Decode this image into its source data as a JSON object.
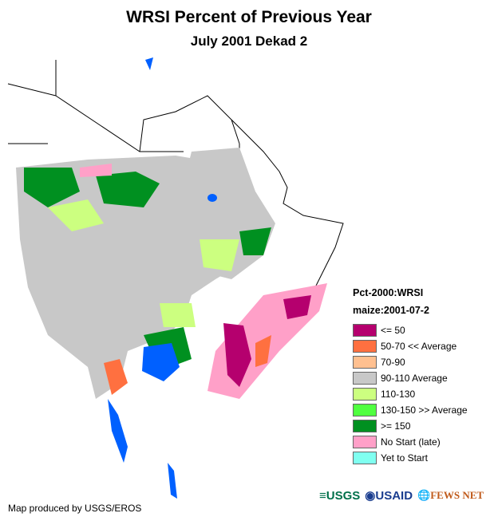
{
  "title": "WRSI Percent of Previous Year",
  "subtitle": "July 2001 Dekad 2",
  "legend": {
    "heading1": "Pct-2000:WRSI",
    "heading2": "maize:2001-07-2",
    "items": [
      {
        "label": "<= 50",
        "color": "#b5006e"
      },
      {
        "label": "50-70 << Average",
        "color": "#ff7040"
      },
      {
        "label": "70-90",
        "color": "#ffc090"
      },
      {
        "label": "90-110 Average",
        "color": "#c8c8c8"
      },
      {
        "label": "110-130",
        "color": "#ccff80"
      },
      {
        "label": "130-150 >> Average",
        "color": "#50ff40"
      },
      {
        "label": ">= 150",
        "color": "#009020"
      },
      {
        "label": "No Start (late)",
        "color": "#ffa0c8"
      },
      {
        "label": "Yet to Start",
        "color": "#80fff0"
      }
    ]
  },
  "credit": "Map produced by USGS/EROS",
  "logos": {
    "usgs": "USGS",
    "usaid": "USAID",
    "fewsnet": "FEWS NET"
  }
}
